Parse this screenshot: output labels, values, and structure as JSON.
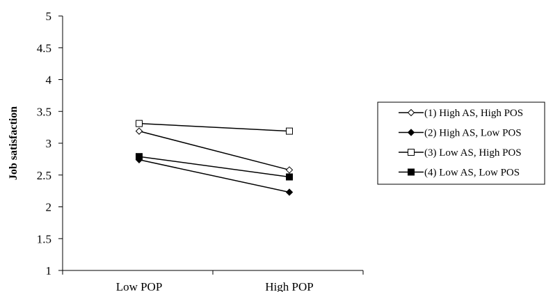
{
  "chart_data": {
    "type": "line",
    "categories": [
      "Low POP",
      "High POP"
    ],
    "ylabel": "Job satisfaction",
    "xlabel": "",
    "ylim": [
      1,
      5
    ],
    "yticks": [
      "1",
      "1.5",
      "2",
      "2.5",
      "3",
      "3.5",
      "4",
      "4.5",
      "5"
    ],
    "legend_position": "right",
    "grid": false,
    "series": [
      {
        "name": "(1) High AS, High POS",
        "values": [
          3.19,
          2.58
        ],
        "marker": "diamond-open"
      },
      {
        "name": "(2) High AS, Low POS",
        "values": [
          2.74,
          2.23
        ],
        "marker": "diamond-filled"
      },
      {
        "name": "(3) Low AS, High POS",
        "values": [
          3.31,
          3.19
        ],
        "marker": "square-open"
      },
      {
        "name": "(4) Low AS, Low POS",
        "values": [
          2.79,
          2.47
        ],
        "marker": "square-filled"
      }
    ]
  }
}
